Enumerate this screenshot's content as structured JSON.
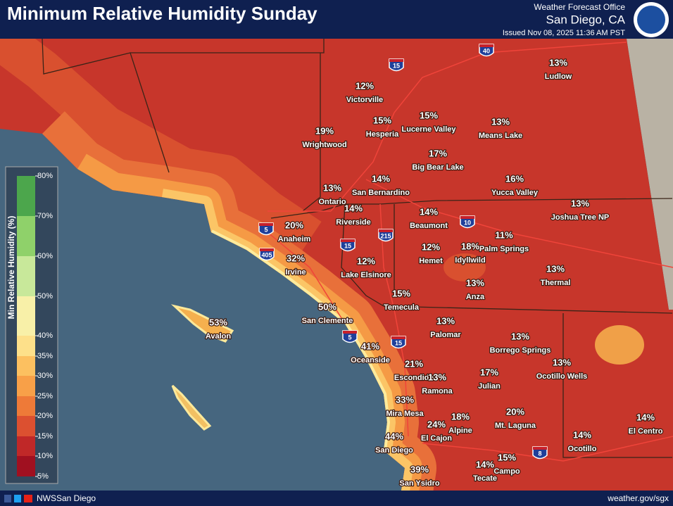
{
  "header": {
    "title": "Minimum Relative Humidity Sunday",
    "office": "Weather Forecast Office",
    "location": "San Diego, CA",
    "issued": "Issued Nov 08, 2025 11:36 AM PST"
  },
  "legend": {
    "title": "Min Relative Humidity (%)",
    "labels": [
      "80%",
      "70%",
      "60%",
      "50%",
      "40%",
      "35%",
      "30%",
      "25%",
      "20%",
      "15%",
      "10%",
      "5%"
    ]
  },
  "places": [
    {
      "name": "Ludlow",
      "value": "13%"
    },
    {
      "name": "Victorville",
      "value": "12%"
    },
    {
      "name": "Hesperia",
      "value": "15%"
    },
    {
      "name": "Lucerne Valley",
      "value": "15%"
    },
    {
      "name": "Means Lake",
      "value": "13%"
    },
    {
      "name": "Wrightwood",
      "value": "19%"
    },
    {
      "name": "Big Bear Lake",
      "value": "17%"
    },
    {
      "name": "San Bernardino",
      "value": "14%"
    },
    {
      "name": "Yucca Valley",
      "value": "16%"
    },
    {
      "name": "Ontario",
      "value": "13%"
    },
    {
      "name": "Riverside",
      "value": "14%"
    },
    {
      "name": "Beaumont",
      "value": "14%"
    },
    {
      "name": "Joshua Tree NP",
      "value": "13%"
    },
    {
      "name": "Anaheim",
      "value": "20%"
    },
    {
      "name": "Palm Springs",
      "value": "11%"
    },
    {
      "name": "Hemet",
      "value": "12%"
    },
    {
      "name": "Idyllwild",
      "value": "18%"
    },
    {
      "name": "Irvine",
      "value": "32%"
    },
    {
      "name": "Lake Elsinore",
      "value": "12%"
    },
    {
      "name": "Thermal",
      "value": "13%"
    },
    {
      "name": "Anza",
      "value": "13%"
    },
    {
      "name": "Temecula",
      "value": "15%"
    },
    {
      "name": "San Clemente",
      "value": "50%"
    },
    {
      "name": "Avalon",
      "value": "53%"
    },
    {
      "name": "Palomar",
      "value": "13%"
    },
    {
      "name": "Borrego Springs",
      "value": "13%"
    },
    {
      "name": "Oceanside",
      "value": "41%"
    },
    {
      "name": "Ocotillo Wells",
      "value": "13%"
    },
    {
      "name": "Escondido",
      "value": "21%"
    },
    {
      "name": "Ramona",
      "value": "13%"
    },
    {
      "name": "Julian",
      "value": "17%"
    },
    {
      "name": "Mira Mesa",
      "value": "33%"
    },
    {
      "name": "Alpine",
      "value": "18%"
    },
    {
      "name": "Mt. Laguna",
      "value": "20%"
    },
    {
      "name": "El Cajon",
      "value": "24%"
    },
    {
      "name": "El Centro",
      "value": "14%"
    },
    {
      "name": "Ocotillo",
      "value": "14%"
    },
    {
      "name": "San Diego",
      "value": "44%"
    },
    {
      "name": "Campo",
      "value": "15%"
    },
    {
      "name": "Tecate",
      "value": "14%"
    },
    {
      "name": "San Ysidro",
      "value": "39%"
    }
  ],
  "highways": [
    "15",
    "40",
    "5",
    "405",
    "15",
    "215",
    "10",
    "5",
    "15",
    "8"
  ],
  "footer": {
    "social": "NWSSan Diego",
    "url": "weather.gov/sgx"
  }
}
